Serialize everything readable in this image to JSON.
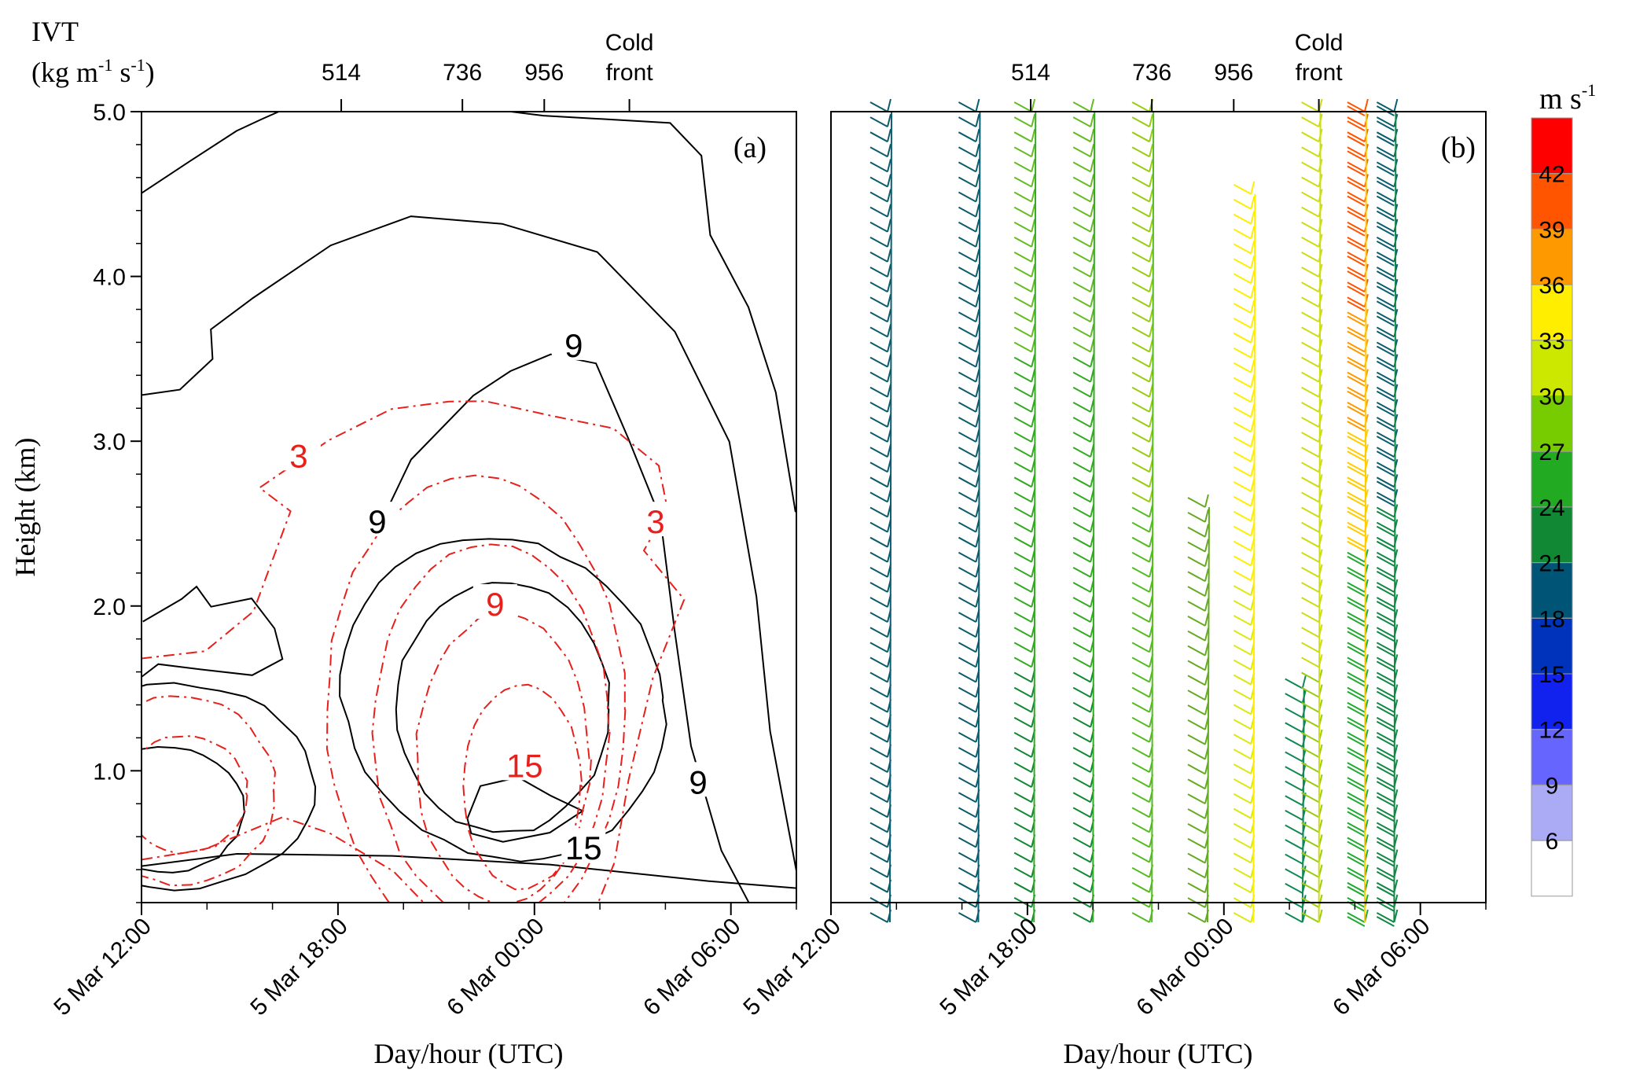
{
  "chart_data": [
    {
      "panel": "(a)",
      "type": "contour",
      "ivt_label": [
        "IVT",
        "(kg m",
        "-1",
        " s",
        "-1",
        ")"
      ],
      "top_axis": [
        {
          "label": "514",
          "x_hours": 18.1
        },
        {
          "label": "736",
          "x_hours": 21.8
        },
        {
          "label": "956",
          "x_hours": 24.3
        },
        {
          "label": "Cold",
          "label2": "front",
          "x_hours": 26.9
        }
      ],
      "xlabel": "Day/hour (UTC)",
      "ylabel": "Height (km)",
      "xlim": [
        "5 Mar 12:00",
        "6 Mar 08:00"
      ],
      "ylim": [
        0.2,
        5.0
      ],
      "x_ticks": [
        "5 Mar 12:00",
        "5 Mar 18:00",
        "6 Mar 00:00",
        "6 Mar 06:00"
      ],
      "y_ticks": [
        "1.0",
        "2.0",
        "3.0",
        "4.0",
        "5.0"
      ],
      "black_contour_labels": [
        {
          "text": "9",
          "x_hours": 25.2,
          "y_km": 3.55
        },
        {
          "text": "9",
          "x_hours": 19.2,
          "y_km": 2.48
        },
        {
          "text": "9",
          "x_hours": 29.0,
          "y_km": 0.9
        },
        {
          "text": "15",
          "x_hours": 25.5,
          "y_km": 0.5
        }
      ],
      "red_contour_labels": [
        {
          "text": "3",
          "x_hours": 16.8,
          "y_km": 2.88
        },
        {
          "text": "3",
          "x_hours": 27.7,
          "y_km": 2.48
        },
        {
          "text": "9",
          "x_hours": 22.8,
          "y_km": 1.98
        },
        {
          "text": "15",
          "x_hours": 23.7,
          "y_km": 1.0
        }
      ],
      "black_color": "#000000",
      "red_color": "#e8201c"
    },
    {
      "panel": "(b)",
      "type": "wind-barbs",
      "top_axis": [
        {
          "label": "514",
          "x_hours": 18.1
        },
        {
          "label": "736",
          "x_hours": 21.8
        },
        {
          "label": "956",
          "x_hours": 24.3
        },
        {
          "label": "Cold",
          "label2": "front",
          "x_hours": 26.9
        }
      ],
      "xlabel": "Day/hour (UTC)",
      "xlim": [
        "5 Mar 12:00",
        "6 Mar 08:00"
      ],
      "x_ticks": [
        "5 Mar 12:00",
        "5 Mar 18:00",
        "6 Mar 00:00",
        "6 Mar 06:00"
      ],
      "barb_columns": [
        {
          "x_hours": 13.8,
          "y_top": 5.0,
          "y_bot": 0.2
        },
        {
          "x_hours": 16.5,
          "y_top": 5.0,
          "y_bot": 0.2
        },
        {
          "x_hours": 18.2,
          "y_top": 5.0,
          "y_bot": 0.2
        },
        {
          "x_hours": 20.0,
          "y_top": 5.0,
          "y_bot": 0.2
        },
        {
          "x_hours": 21.8,
          "y_top": 5.0,
          "y_bot": 0.2
        },
        {
          "x_hours": 23.5,
          "y_top": 2.6,
          "y_bot": 0.2
        },
        {
          "x_hours": 24.9,
          "y_top": 4.5,
          "y_bot": 0.2
        },
        {
          "x_hours": 26.4,
          "y_top": 1.5,
          "y_bot": 0.2
        },
        {
          "x_hours": 26.9,
          "y_top": 5.0,
          "y_bot": 0.2
        },
        {
          "x_hours": 28.3,
          "y_top": 5.0,
          "y_bot": 0.2
        },
        {
          "x_hours": 29.2,
          "y_top": 5.0,
          "y_bot": 0.2
        }
      ]
    }
  ],
  "colorbar": {
    "unit": [
      "m s",
      "-1"
    ],
    "tick_labels": [
      "42",
      "39",
      "36",
      "33",
      "30",
      "27",
      "24",
      "21",
      "18",
      "15",
      "12",
      "9",
      "6"
    ],
    "colors": [
      "#ff0000",
      "#ff5500",
      "#ff9900",
      "#ffee00",
      "#cce800",
      "#77cc00",
      "#22aa22",
      "#118833",
      "#005577",
      "#0033bb",
      "#1122ee",
      "#6666ff",
      "#aaaaf5",
      "#ffffff"
    ]
  }
}
